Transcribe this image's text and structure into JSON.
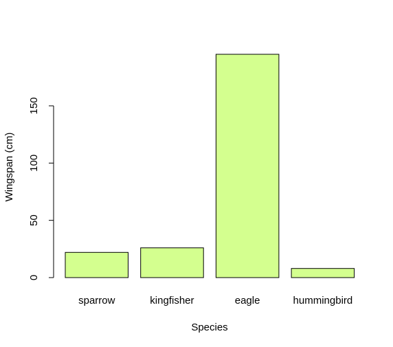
{
  "chart_data": {
    "type": "bar",
    "categories": [
      "sparrow",
      "kingfisher",
      "eagle",
      "hummingbird"
    ],
    "values": [
      22,
      26,
      195,
      8
    ],
    "xlabel": "Species",
    "ylabel": "Wingspan (cm)",
    "y_ticks": [
      0,
      50,
      100,
      150
    ],
    "ylim": [
      0,
      195
    ],
    "grid": false,
    "bar_color": "#d4ff8f",
    "bar_border_color": "#000000"
  }
}
